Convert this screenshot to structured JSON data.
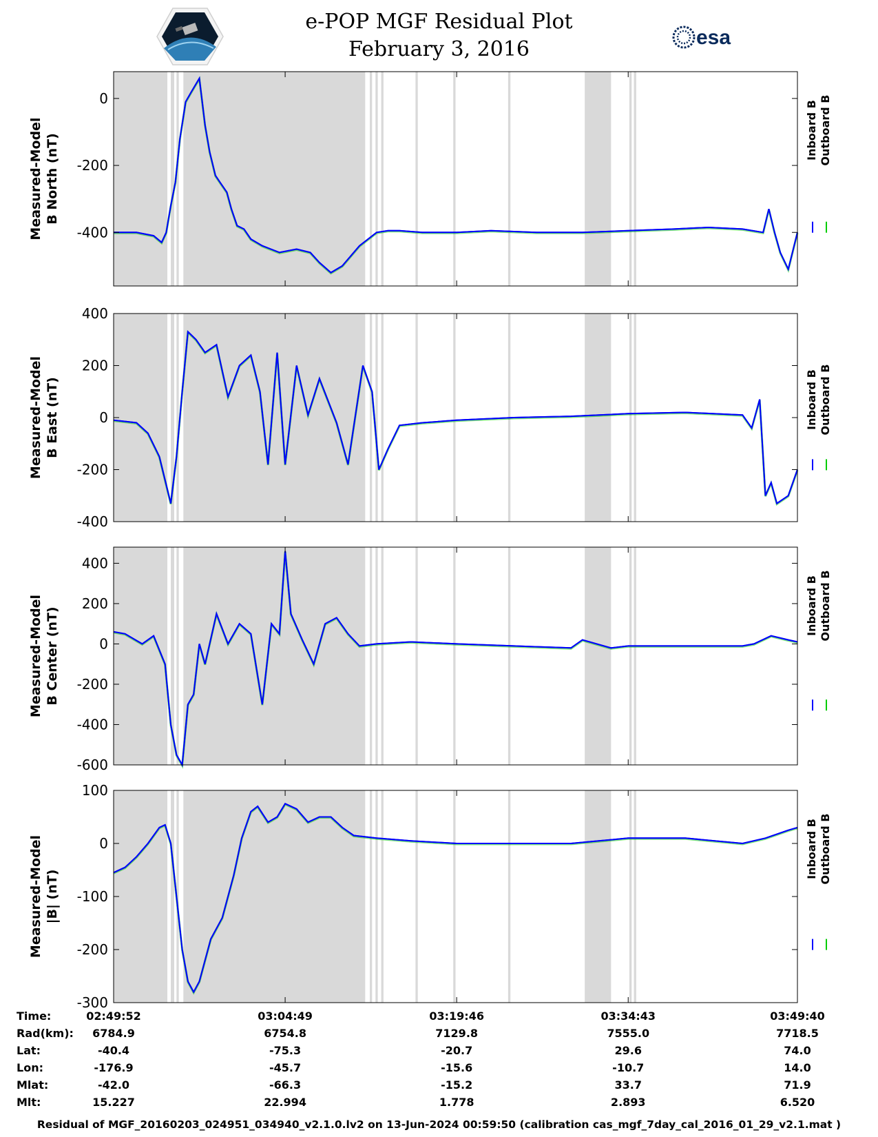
{
  "header": {
    "title_line1": "e-POP MGF Residual Plot",
    "title_line2": "February 3, 2016",
    "logo_left": "cassiope-logo",
    "logo_right": "esa-logo",
    "logo_right_text": "esa"
  },
  "colors": {
    "inboard": "#0000ff",
    "outboard": "#00cc00",
    "shade": "#d9d9d9"
  },
  "legend": {
    "inboard": "Inboard B",
    "outboard": "Outboard B"
  },
  "chart_data": [
    {
      "type": "line",
      "ylabel": [
        "Measured-Model",
        "B North (nT)"
      ],
      "ylim": [
        -560,
        80
      ],
      "yticks": [
        0,
        -200,
        -400
      ],
      "x_unit": "minutes after 02:49:52",
      "xlim": [
        0,
        59.8
      ],
      "series": [
        {
          "name": "Inboard B",
          "x": [
            0,
            2,
            3.5,
            4.2,
            4.6,
            5.0,
            5.4,
            5.8,
            6.3,
            6.8,
            7.5,
            8.0,
            8.4,
            8.9,
            9.3,
            9.9,
            10.3,
            10.8,
            11.4,
            12.0,
            13.0,
            14.5,
            16.0,
            17.2,
            18.0,
            19.0,
            20.0,
            21.5,
            23.0,
            24.0,
            25.0,
            27.0,
            30.0,
            33.0,
            37.0,
            41.0,
            45.0,
            49.0,
            52.0,
            55.0,
            56.8,
            57.3,
            57.8,
            58.3,
            59.0,
            59.8
          ],
          "y": [
            -400,
            -400,
            -410,
            -430,
            -400,
            -320,
            -250,
            -120,
            -10,
            20,
            60,
            -80,
            -160,
            -230,
            -250,
            -280,
            -330,
            -380,
            -390,
            -420,
            -440,
            -460,
            -450,
            -460,
            -490,
            -520,
            -500,
            -440,
            -400,
            -395,
            -395,
            -400,
            -400,
            -395,
            -400,
            -400,
            -395,
            -390,
            -385,
            -390,
            -400,
            -330,
            -400,
            -460,
            -510,
            -400
          ]
        },
        {
          "name": "Outboard B",
          "x": [
            0,
            2,
            3.5,
            4.2,
            4.6,
            5.0,
            5.4,
            5.8,
            6.3,
            6.8,
            7.5,
            8.0,
            8.4,
            8.9,
            9.3,
            9.9,
            10.3,
            10.8,
            11.4,
            12.0,
            13.0,
            14.5,
            16.0,
            17.2,
            18.0,
            19.0,
            20.0,
            21.5,
            23.0,
            24.0,
            25.0,
            27.0,
            30.0,
            33.0,
            37.0,
            41.0,
            45.0,
            49.0,
            52.0,
            55.0,
            56.8,
            57.3,
            57.8,
            58.3,
            59.0,
            59.8
          ],
          "y": [
            -400,
            -400,
            -410,
            -430,
            -400,
            -320,
            -250,
            -120,
            -10,
            20,
            60,
            -80,
            -160,
            -230,
            -250,
            -280,
            -330,
            -380,
            -390,
            -420,
            -440,
            -460,
            -450,
            -460,
            -490,
            -520,
            -500,
            -440,
            -400,
            -395,
            -395,
            -400,
            -400,
            -395,
            -400,
            -400,
            -395,
            -390,
            -385,
            -390,
            -400,
            -330,
            -400,
            -460,
            -510,
            -400
          ]
        }
      ]
    },
    {
      "type": "line",
      "ylabel": [
        "Measured-Model",
        "B East (nT)"
      ],
      "ylim": [
        -400,
        400
      ],
      "yticks": [
        400,
        200,
        0,
        -200,
        -400
      ],
      "x_unit": "minutes after 02:49:52",
      "xlim": [
        0,
        59.8
      ],
      "series": [
        {
          "name": "Inboard B",
          "x": [
            0,
            2,
            3.0,
            4.0,
            5.0,
            5.5,
            6.0,
            6.5,
            7.2,
            8.0,
            9.0,
            10.0,
            11.0,
            12.0,
            12.8,
            13.5,
            14.3,
            15.0,
            16.0,
            17.0,
            18.0,
            19.5,
            20.5,
            21.8,
            22.6,
            23.2,
            24.0,
            25.0,
            27.0,
            30.0,
            35.0,
            40.0,
            45.0,
            50.0,
            55.0,
            55.8,
            56.5,
            57.0,
            57.5,
            58.0,
            59.0,
            59.8
          ],
          "y": [
            -10,
            -20,
            -60,
            -150,
            -330,
            -150,
            100,
            330,
            300,
            250,
            280,
            80,
            200,
            240,
            100,
            -180,
            250,
            -180,
            200,
            10,
            150,
            -20,
            -180,
            200,
            100,
            -200,
            -120,
            -30,
            -20,
            -10,
            0,
            5,
            15,
            20,
            10,
            -40,
            70,
            -300,
            -250,
            -330,
            -300,
            -200
          ]
        },
        {
          "name": "Outboard B",
          "x": [
            0,
            2,
            3.0,
            4.0,
            5.0,
            5.5,
            6.0,
            6.5,
            7.2,
            8.0,
            9.0,
            10.0,
            11.0,
            12.0,
            12.8,
            13.5,
            14.3,
            15.0,
            16.0,
            17.0,
            18.0,
            19.5,
            20.5,
            21.8,
            22.6,
            23.2,
            24.0,
            25.0,
            27.0,
            30.0,
            35.0,
            40.0,
            45.0,
            50.0,
            55.0,
            55.8,
            56.5,
            57.0,
            57.5,
            58.0,
            59.0,
            59.8
          ],
          "y": [
            -10,
            -20,
            -60,
            -150,
            -330,
            -150,
            100,
            330,
            300,
            250,
            280,
            80,
            200,
            240,
            100,
            -180,
            250,
            -180,
            200,
            10,
            150,
            -20,
            -180,
            200,
            100,
            -200,
            -120,
            -30,
            -20,
            -10,
            0,
            5,
            15,
            20,
            10,
            -40,
            70,
            -300,
            -250,
            -330,
            -300,
            -200
          ]
        }
      ]
    },
    {
      "type": "line",
      "ylabel": [
        "Measured-Model",
        "B Center (nT)"
      ],
      "ylim": [
        -600,
        480
      ],
      "yticks": [
        400,
        200,
        0,
        -200,
        -400,
        -600
      ],
      "x_unit": "minutes after 02:49:52",
      "xlim": [
        0,
        59.8
      ],
      "series": [
        {
          "name": "Inboard B",
          "x": [
            0,
            1,
            2.5,
            3.5,
            4.5,
            5.0,
            5.5,
            6.0,
            6.5,
            7.0,
            7.5,
            8.0,
            9.0,
            10.0,
            11.0,
            12.0,
            13.0,
            13.8,
            14.5,
            15.0,
            15.5,
            16.5,
            17.5,
            18.5,
            19.5,
            20.5,
            21.5,
            23.0,
            26.0,
            30.0,
            35.0,
            40.0,
            41.0,
            43.5,
            45.0,
            50.0,
            55.0,
            56.0,
            57.5,
            59.0,
            59.8
          ],
          "y": [
            60,
            50,
            0,
            40,
            -100,
            -400,
            -550,
            -600,
            -300,
            -250,
            0,
            -100,
            150,
            0,
            100,
            50,
            -300,
            100,
            50,
            460,
            150,
            20,
            -100,
            100,
            130,
            50,
            -10,
            0,
            10,
            0,
            -10,
            -20,
            20,
            -20,
            -10,
            -10,
            -10,
            0,
            40,
            20,
            10
          ]
        },
        {
          "name": "Outboard B",
          "x": [
            0,
            1,
            2.5,
            3.5,
            4.5,
            5.0,
            5.5,
            6.0,
            6.5,
            7.0,
            7.5,
            8.0,
            9.0,
            10.0,
            11.0,
            12.0,
            13.0,
            13.8,
            14.5,
            15.0,
            15.5,
            16.5,
            17.5,
            18.5,
            19.5,
            20.5,
            21.5,
            23.0,
            26.0,
            30.0,
            35.0,
            40.0,
            41.0,
            43.5,
            45.0,
            50.0,
            55.0,
            56.0,
            57.5,
            59.0,
            59.8
          ],
          "y": [
            60,
            50,
            0,
            40,
            -100,
            -400,
            -550,
            -600,
            -300,
            -250,
            0,
            -100,
            150,
            0,
            100,
            50,
            -300,
            100,
            50,
            460,
            150,
            20,
            -100,
            100,
            130,
            50,
            -10,
            0,
            10,
            0,
            -10,
            -20,
            20,
            -20,
            -10,
            -10,
            -10,
            0,
            40,
            20,
            10
          ]
        }
      ]
    },
    {
      "type": "line",
      "ylabel": [
        "Measured-Model",
        "|B| (nT)"
      ],
      "ylim": [
        -300,
        100
      ],
      "yticks": [
        100,
        0,
        -100,
        -200,
        -300
      ],
      "x_unit": "minutes after 02:49:52",
      "xlim": [
        0,
        59.8
      ],
      "series": [
        {
          "name": "Inboard B",
          "x": [
            0,
            1,
            2,
            3,
            4,
            4.5,
            5,
            5.5,
            6,
            6.5,
            7,
            7.5,
            8.5,
            9.5,
            10.5,
            11.2,
            12,
            12.6,
            13.5,
            14.3,
            15,
            16,
            17,
            18,
            19,
            20,
            21,
            23,
            26,
            30,
            35,
            40,
            45,
            50,
            55,
            57,
            59,
            59.8
          ],
          "y": [
            -55,
            -45,
            -25,
            0,
            30,
            35,
            0,
            -100,
            -200,
            -260,
            -280,
            -260,
            -180,
            -140,
            -60,
            10,
            60,
            70,
            40,
            50,
            75,
            65,
            40,
            50,
            50,
            30,
            15,
            10,
            5,
            0,
            0,
            0,
            10,
            10,
            0,
            10,
            25,
            30
          ]
        },
        {
          "name": "Outboard B",
          "x": [
            0,
            1,
            2,
            3,
            4,
            4.5,
            5,
            5.5,
            6,
            6.5,
            7,
            7.5,
            8.5,
            9.5,
            10.5,
            11.2,
            12,
            12.6,
            13.5,
            14.3,
            15,
            16,
            17,
            18,
            19,
            20,
            21,
            23,
            26,
            30,
            35,
            40,
            45,
            50,
            55,
            57,
            59,
            59.8
          ],
          "y": [
            -55,
            -45,
            -25,
            0,
            30,
            35,
            0,
            -100,
            -200,
            -260,
            -280,
            -260,
            -180,
            -140,
            -60,
            10,
            60,
            70,
            40,
            50,
            75,
            65,
            40,
            50,
            50,
            30,
            15,
            10,
            5,
            0,
            0,
            0,
            10,
            10,
            0,
            10,
            25,
            30
          ]
        }
      ]
    }
  ],
  "shaded_regions_minutes": [
    [
      0,
      4.7
    ],
    [
      5.0,
      5.3
    ],
    [
      5.5,
      5.7
    ],
    [
      6.1,
      22.0
    ],
    [
      22.4,
      22.6
    ],
    [
      22.9,
      23.1
    ],
    [
      23.4,
      23.6
    ],
    [
      26.4,
      26.6
    ],
    [
      29.7,
      29.9
    ],
    [
      34.5,
      34.7
    ],
    [
      41.2,
      43.5
    ],
    [
      45.1,
      45.3
    ],
    [
      45.5,
      45.7
    ]
  ],
  "xticks_minutes": [
    0,
    15,
    30,
    45,
    59.8
  ],
  "ephemeris": {
    "labels": [
      "Time:",
      "Rad(km):",
      "Lat:",
      "Lon:",
      "Mlat:",
      "Mlt:"
    ],
    "columns": [
      [
        "02:49:52",
        "6784.9",
        "-40.4",
        "-176.9",
        "-42.0",
        "15.227"
      ],
      [
        "03:04:49",
        "6754.8",
        "-75.3",
        "-45.7",
        "-66.3",
        "22.994"
      ],
      [
        "03:19:46",
        "7129.8",
        "-20.7",
        "-15.6",
        "-15.2",
        "1.778"
      ],
      [
        "03:34:43",
        "7555.0",
        "29.6",
        "-10.7",
        "33.7",
        "2.893"
      ],
      [
        "03:49:40",
        "7718.5",
        "74.0",
        "14.0",
        "71.9",
        "6.520"
      ]
    ]
  },
  "footer": "Residual of MGF_20160203_024951_034940_v2.1.0.lv2 on 13-Jun-2024 00:59:50 (calibration cas_mgf_7day_cal_2016_01_29_v2.1.mat )"
}
